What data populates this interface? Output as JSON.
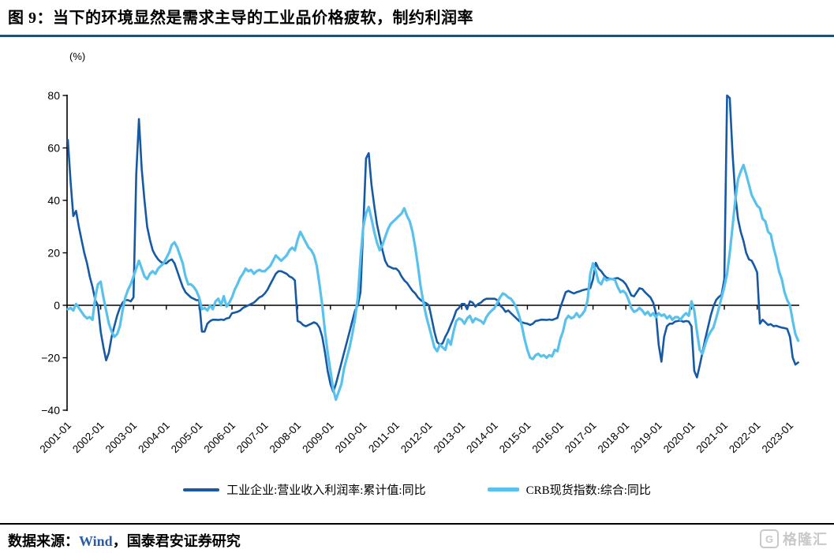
{
  "page": {
    "title": "图 9：当下的环境显然是需求主导的工业品价格疲软，制约利润率"
  },
  "footer": {
    "source_prefix": "数据来源：",
    "source_brand": "Wind",
    "source_suffix": "，国泰君安证券研究"
  },
  "watermark": {
    "logo_letter": "G",
    "text": "格隆汇"
  },
  "chart_data": {
    "type": "line",
    "title": "",
    "ylabel": "(%)",
    "xlabel": "",
    "ylim": [
      -40,
      80
    ],
    "yticks": [
      80,
      60,
      40,
      20,
      0,
      -20,
      -40
    ],
    "grid": false,
    "legend_position": "bottom",
    "x_frequency": "monthly",
    "x_start_label": "2001-01",
    "x_end_label": "2023-04",
    "xtick_labels": [
      "2001-01",
      "2002-01",
      "2003-01",
      "2004-01",
      "2005-01",
      "2006-01",
      "2007-01",
      "2008-01",
      "2009-01",
      "2010-01",
      "2011-01",
      "2012-01",
      "2013-01",
      "2014-01",
      "2015-01",
      "2016-01",
      "2017-01",
      "2018-01",
      "2019-01",
      "2020-01",
      "2021-01",
      "2022-01",
      "2023-01"
    ],
    "series": [
      {
        "name": "工业企业:营业收入利润率:累计值:同比",
        "color": "#1659A5",
        "stroke_width": 2.6,
        "values": [
          63,
          47,
          34,
          36,
          30,
          25,
          20,
          16,
          11,
          7,
          2,
          0,
          -10,
          -16,
          -21,
          -18,
          -12,
          -8,
          -4,
          -1,
          1,
          2,
          2,
          1.5,
          3,
          50,
          71,
          52,
          40,
          30,
          25,
          21,
          19,
          17.5,
          16.5,
          16,
          16,
          17,
          17.5,
          16,
          13,
          10,
          7,
          5,
          4,
          3,
          2.5,
          2,
          2,
          -10,
          -10,
          -7,
          -6,
          -5.5,
          -5.5,
          -5.6,
          -5.4,
          -5.6,
          -5,
          -4.8,
          -3,
          -2.8,
          -2.5,
          -2,
          -1,
          -0.5,
          0,
          0.5,
          1,
          2,
          3,
          3.5,
          4.5,
          6,
          8,
          10,
          12,
          13,
          13,
          12.5,
          12,
          11,
          10.5,
          9.5,
          -6,
          -6.5,
          -7.5,
          -8,
          -7.5,
          -7,
          -6.5,
          -7,
          -8.5,
          -12,
          -18,
          -25,
          -30,
          -33,
          -30,
          -26,
          -22,
          -18,
          -14,
          -10,
          -6,
          -2,
          0,
          5,
          30,
          56,
          58,
          46,
          38,
          31,
          26,
          21,
          17,
          15,
          14.5,
          14,
          14,
          13,
          11,
          9.5,
          8.5,
          7,
          5.5,
          4.5,
          3,
          2,
          1.2,
          0.8,
          0,
          -5,
          -10,
          -14,
          -15,
          -14.5,
          -12,
          -10,
          -7.5,
          -5,
          -2,
          -1,
          0.5,
          0.5,
          -1.5,
          1.5,
          1,
          -0.5,
          0.5,
          1,
          2,
          2.5,
          2.5,
          2.5,
          2.5,
          2,
          0,
          -1,
          -2.5,
          -2,
          -3,
          -4,
          -5,
          -6,
          -6.5,
          -6.8,
          -7,
          -7.5,
          -7,
          -6,
          -5.8,
          -5.5,
          -5.5,
          -5.6,
          -5.4,
          -5.6,
          -5.2,
          -4.8,
          -1,
          2,
          5,
          5.5,
          5,
          4.5,
          5,
          5.3,
          5.7,
          6,
          6.2,
          6.5,
          10,
          16.2,
          14,
          13,
          11.5,
          10.5,
          10.2,
          10,
          10.2,
          10.4,
          9.8,
          9.2,
          8,
          6,
          3.8,
          3.4,
          5,
          6.5,
          6.2,
          5,
          4,
          3,
          1,
          -3,
          -15,
          -21.5,
          -12,
          -8,
          -7,
          -7,
          -6.2,
          -6,
          -5.8,
          -6.3,
          -6,
          -6.2,
          -8,
          -25,
          -27.5,
          -23,
          -18,
          -13,
          -8.5,
          -4,
          -0.5,
          2,
          3.2,
          4,
          10,
          80,
          79,
          58,
          42,
          33,
          28,
          24.5,
          20,
          17.5,
          17,
          15,
          12.5,
          -7,
          -5.5,
          -6.5,
          -7.5,
          -7.2,
          -8,
          -7.8,
          -8.2,
          -8.5,
          -8.7,
          -9,
          -12,
          -20,
          -22.6,
          -21.8
        ]
      },
      {
        "name": "CRB现货指数:综合:同比",
        "color": "#58C1EC",
        "stroke_width": 3.2,
        "values": [
          -1.5,
          -1,
          -2,
          0.5,
          -1,
          -2.5,
          -4,
          -5,
          -4.5,
          -5.5,
          3,
          8,
          9,
          3,
          -2,
          -7,
          -10,
          -12,
          -11,
          -8,
          -2,
          3,
          6,
          8,
          11,
          14,
          17,
          14,
          11,
          10,
          12,
          13,
          12,
          14,
          15,
          16,
          18,
          20,
          23,
          24,
          22,
          19,
          16,
          11,
          8,
          8,
          7,
          5.5,
          3,
          -1.5,
          -1,
          -2,
          0,
          -1.5,
          1.5,
          2.5,
          0,
          3.5,
          -0.5,
          1,
          3,
          6,
          8,
          10.5,
          12,
          14,
          13,
          13.5,
          12,
          13,
          13.5,
          13,
          13,
          14,
          15,
          17,
          19,
          18,
          17,
          18,
          19,
          21,
          22,
          21,
          25,
          28,
          26,
          24,
          22,
          21,
          19,
          15,
          8,
          0,
          -10,
          -18,
          -25,
          -32,
          -36,
          -33,
          -30,
          -24,
          -20,
          -16,
          -11,
          -5,
          3,
          18,
          30,
          35,
          37.5,
          33,
          28,
          24,
          21,
          23,
          26,
          29,
          31,
          32,
          33,
          34,
          35,
          37,
          34,
          32,
          28,
          22,
          15,
          7,
          1,
          -4,
          -8,
          -12,
          -16,
          -17.5,
          -15,
          -16,
          -17,
          -13,
          -15,
          -10,
          -6,
          -5,
          -5.5,
          -7,
          -5,
          -4,
          -6.5,
          -5,
          -5.5,
          -6,
          -7,
          -4.5,
          -3,
          -2,
          -1,
          1,
          3,
          4.5,
          4,
          3,
          2.5,
          1,
          -1,
          -4,
          -8,
          -13,
          -17,
          -20,
          -20.5,
          -19,
          -18.5,
          -19.5,
          -19,
          -20,
          -19,
          -19.5,
          -17,
          -17.5,
          -13,
          -10,
          -5.5,
          -4,
          -5,
          -4.5,
          -3,
          -4.5,
          -3.5,
          -2,
          2,
          12,
          16,
          13,
          9,
          8,
          10.5,
          9.5,
          10,
          10,
          9.7,
          7,
          5,
          5.5,
          4.5,
          2,
          -1,
          -2.5,
          -2,
          -1,
          -2,
          -3.5,
          -2.5,
          -4,
          -3,
          -4.5,
          -3,
          -4,
          -3.5,
          -5,
          -4,
          -5.5,
          -4.5,
          -4.5,
          -5.5,
          -4,
          -3,
          -4,
          1.5,
          -2,
          -10,
          -17,
          -18.5,
          -15,
          -12,
          -10,
          -8.5,
          -5,
          -1,
          3,
          7,
          12,
          20,
          30,
          40,
          48,
          51,
          53.5,
          50,
          46,
          42,
          40,
          38,
          37,
          33,
          32,
          28,
          27,
          22,
          18,
          13,
          10,
          5,
          2,
          0,
          -6,
          -11,
          -13.5
        ]
      }
    ]
  }
}
